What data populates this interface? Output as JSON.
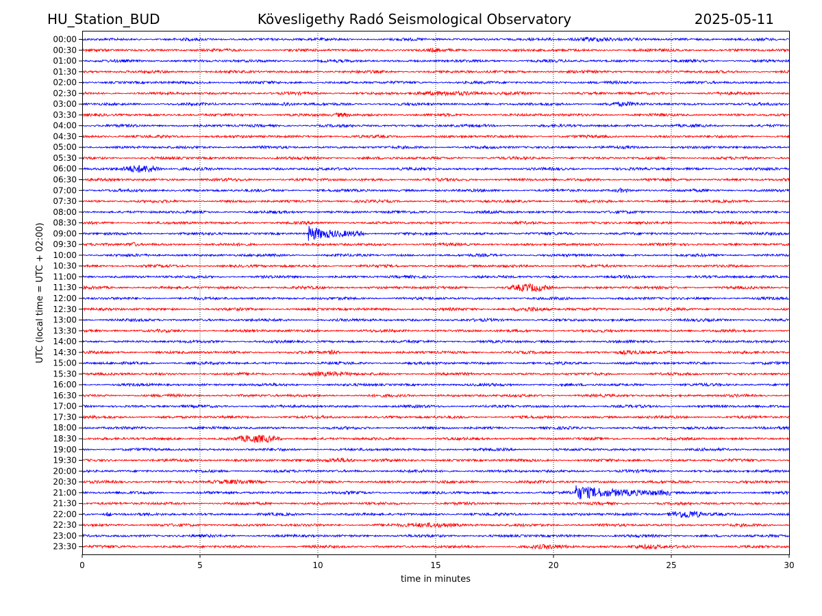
{
  "header": {
    "station": "HU_Station_BUD",
    "observatory": "Kövesligethy Radó Seismological Observatory",
    "date": "2025-05-11"
  },
  "chart_data": {
    "type": "line",
    "title": "Kövesligethy Radó Seismological Observatory",
    "xlabel": "time in minutes",
    "ylabel": "UTC (local time = UTC + 02:00)",
    "xlim": [
      0,
      30
    ],
    "x_ticks": [
      "0",
      "5",
      "10",
      "15",
      "20",
      "25",
      "30"
    ],
    "grid": "vertical dotted lines at x ticks",
    "colors": {
      "even_trace": "#0000ff",
      "odd_trace": "#ff0000"
    },
    "rows": [
      "00:00",
      "00:30",
      "01:00",
      "01:30",
      "02:00",
      "02:30",
      "03:00",
      "03:30",
      "04:00",
      "04:30",
      "05:00",
      "05:30",
      "06:00",
      "06:30",
      "07:00",
      "07:30",
      "08:00",
      "08:30",
      "09:00",
      "09:30",
      "10:00",
      "10:30",
      "11:00",
      "11:30",
      "12:00",
      "12:30",
      "13:00",
      "13:30",
      "14:00",
      "14:30",
      "15:00",
      "15:30",
      "16:00",
      "16:30",
      "17:00",
      "17:30",
      "18:00",
      "18:30",
      "19:00",
      "19:30",
      "20:00",
      "20:30",
      "21:00",
      "21:30",
      "22:00",
      "22:30",
      "23:00",
      "23:30"
    ],
    "events": [
      {
        "row": "00:00",
        "start_min": 20.5,
        "end_min": 23,
        "level": "moderate"
      },
      {
        "row": "00:30",
        "start_min": 14.5,
        "end_min": 15.5,
        "level": "moderate"
      },
      {
        "row": "02:30",
        "start_min": 13.5,
        "end_min": 17.5,
        "level": "moderate"
      },
      {
        "row": "03:00",
        "start_min": 8.3,
        "end_min": 9.0,
        "level": "moderate"
      },
      {
        "row": "03:00",
        "start_min": 22,
        "end_min": 24,
        "level": "moderate"
      },
      {
        "row": "03:30",
        "start_min": 10.5,
        "end_min": 11.5,
        "level": "moderate"
      },
      {
        "row": "06:00",
        "start_min": 1.5,
        "end_min": 3.5,
        "level": "strong"
      },
      {
        "row": "07:00",
        "start_min": 22.5,
        "end_min": 23.3,
        "level": "moderate"
      },
      {
        "row": "09:00",
        "start_min": 9.6,
        "end_min": 12,
        "level": "very strong"
      },
      {
        "row": "09:30",
        "start_min": 1.8,
        "end_min": 2.5,
        "level": "moderate"
      },
      {
        "row": "11:30",
        "start_min": 18,
        "end_min": 20,
        "level": "strong"
      },
      {
        "row": "12:30",
        "start_min": 18,
        "end_min": 20,
        "level": "moderate"
      },
      {
        "row": "14:30",
        "start_min": 10.3,
        "end_min": 11,
        "level": "moderate"
      },
      {
        "row": "14:30",
        "start_min": 22.5,
        "end_min": 24,
        "level": "moderate"
      },
      {
        "row": "15:30",
        "start_min": 9,
        "end_min": 12,
        "level": "moderate"
      },
      {
        "row": "18:30",
        "start_min": 6.3,
        "end_min": 8.5,
        "level": "strong"
      },
      {
        "row": "19:30",
        "start_min": 10,
        "end_min": 11.8,
        "level": "moderate"
      },
      {
        "row": "20:30",
        "start_min": 5,
        "end_min": 8,
        "level": "moderate"
      },
      {
        "row": "21:00",
        "start_min": 20.9,
        "end_min": 25,
        "level": "very strong"
      },
      {
        "row": "22:00",
        "start_min": 0.9,
        "end_min": 1.3,
        "level": "moderate"
      },
      {
        "row": "22:00",
        "start_min": 24.8,
        "end_min": 26.5,
        "level": "strong"
      },
      {
        "row": "22:30",
        "start_min": 13,
        "end_min": 16.5,
        "level": "moderate"
      },
      {
        "row": "23:30",
        "start_min": 18.5,
        "end_min": 21,
        "level": "moderate"
      },
      {
        "row": "23:30",
        "start_min": 23,
        "end_min": 25,
        "level": "moderate"
      }
    ]
  }
}
